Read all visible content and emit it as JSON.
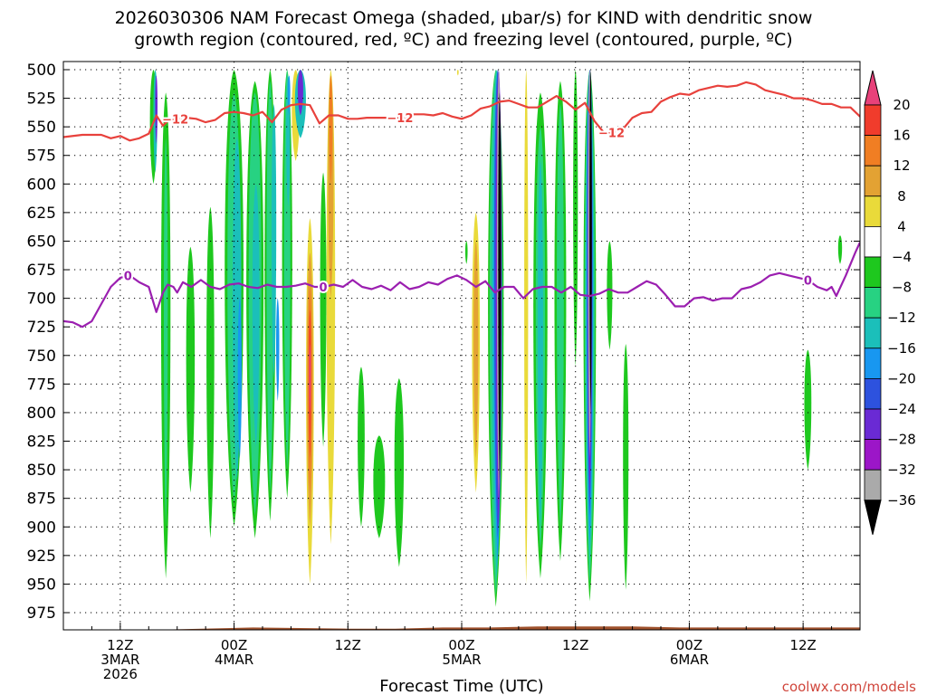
{
  "chart_data": {
    "type": "heatmap",
    "title_lines": [
      "2026030306 NAM Forecast Omega (shaded, μbar/s) for KIND with dendritic snow",
      "growth region (contoured, red, ºC) and freezing level (contoured, purple, ºC)"
    ],
    "xlabel": "Forecast Time (UTC)",
    "ylabel": "",
    "credit": "coolwx.com/models",
    "y_axis": {
      "unit": "hPa",
      "range": [
        500,
        990
      ],
      "ticks": [
        "500",
        "525",
        "550",
        "575",
        "600",
        "625",
        "650",
        "675",
        "700",
        "725",
        "750",
        "775",
        "800",
        "825",
        "850",
        "875",
        "900",
        "925",
        "950",
        "975"
      ]
    },
    "x_axis": {
      "unit": "hours since 2026-03-03 06Z",
      "range": [
        0,
        84
      ],
      "ticks": [
        {
          "hour": 6,
          "label1": "12Z",
          "label2": "3MAR",
          "label3": "2026"
        },
        {
          "hour": 18,
          "label1": "00Z",
          "label2": "4MAR",
          "label3": ""
        },
        {
          "hour": 30,
          "label1": "12Z",
          "label2": "",
          "label3": ""
        },
        {
          "hour": 42,
          "label1": "00Z",
          "label2": "5MAR",
          "label3": ""
        },
        {
          "hour": 54,
          "label1": "12Z",
          "label2": "",
          "label3": ""
        },
        {
          "hour": 66,
          "label1": "00Z",
          "label2": "6MAR",
          "label3": ""
        },
        {
          "hour": 78,
          "label1": "12Z",
          "label2": "",
          "label3": ""
        }
      ]
    },
    "grid": true,
    "colorbar": {
      "levels": [
        "20",
        "16",
        "12",
        "8",
        "4",
        "−4",
        "−8",
        "−12",
        "−16",
        "−20",
        "−24",
        "−28",
        "−32",
        "−36"
      ],
      "colors": [
        "#e8417a",
        "#f03c2c",
        "#f07e23",
        "#e3a233",
        "#e9da3a",
        "#ffffff",
        "#1ec81e",
        "#27d282",
        "#1bbfba",
        "#1897f0",
        "#2d52de",
        "#6a2ad4",
        "#9c16c8",
        "#aaaaaa",
        "#000000"
      ]
    },
    "omega_bands": [
      {
        "x": 9.5,
        "p_top": 500,
        "p_bot": 600,
        "width": 0.9,
        "color": "#1ec81e"
      },
      {
        "x": 9.7,
        "p_top": 500,
        "p_bot": 590,
        "width": 0.5,
        "color": "#1bbfba"
      },
      {
        "x": 9.8,
        "p_top": 505,
        "p_bot": 565,
        "width": 0.3,
        "color": "#6a2ad4"
      },
      {
        "x": 10.8,
        "p_top": 520,
        "p_bot": 945,
        "width": 1.2,
        "color": "#1ec81e"
      },
      {
        "x": 10.8,
        "p_top": 560,
        "p_bot": 900,
        "width": 0.5,
        "color": "#27d282"
      },
      {
        "x": 13.4,
        "p_top": 655,
        "p_bot": 870,
        "width": 1.1,
        "color": "#1ec81e"
      },
      {
        "x": 15.5,
        "p_top": 620,
        "p_bot": 910,
        "width": 1.0,
        "color": "#1ec81e"
      },
      {
        "x": 18.0,
        "p_top": 500,
        "p_bot": 900,
        "width": 2.4,
        "color": "#1ec81e"
      },
      {
        "x": 18.0,
        "p_top": 520,
        "p_bot": 880,
        "width": 1.7,
        "color": "#27d282"
      },
      {
        "x": 18.3,
        "p_top": 560,
        "p_bot": 860,
        "width": 1.1,
        "color": "#1bbfba"
      },
      {
        "x": 18.6,
        "p_top": 700,
        "p_bot": 840,
        "width": 0.5,
        "color": "#1897f0"
      },
      {
        "x": 20.2,
        "p_top": 510,
        "p_bot": 910,
        "width": 2.2,
        "color": "#1ec81e"
      },
      {
        "x": 20.2,
        "p_top": 520,
        "p_bot": 890,
        "width": 1.6,
        "color": "#27d282"
      },
      {
        "x": 20.3,
        "p_top": 600,
        "p_bot": 830,
        "width": 0.9,
        "color": "#1bbfba"
      },
      {
        "x": 21.8,
        "p_top": 500,
        "p_bot": 895,
        "width": 1.4,
        "color": "#1ec81e"
      },
      {
        "x": 21.8,
        "p_top": 510,
        "p_bot": 870,
        "width": 0.9,
        "color": "#27d282"
      },
      {
        "x": 22.2,
        "p_top": 530,
        "p_bot": 770,
        "width": 0.6,
        "color": "#1bbfba"
      },
      {
        "x": 22.6,
        "p_top": 700,
        "p_bot": 790,
        "width": 0.4,
        "color": "#1897f0"
      },
      {
        "x": 23.6,
        "p_top": 500,
        "p_bot": 875,
        "width": 1.3,
        "color": "#1ec81e"
      },
      {
        "x": 23.6,
        "p_top": 500,
        "p_bot": 850,
        "width": 0.8,
        "color": "#27d282"
      },
      {
        "x": 23.7,
        "p_top": 505,
        "p_bot": 620,
        "width": 0.5,
        "color": "#1bbfba"
      },
      {
        "x": 23.8,
        "p_top": 505,
        "p_bot": 540,
        "width": 0.3,
        "color": "#1897f0"
      },
      {
        "x": 24.5,
        "p_top": 500,
        "p_bot": 580,
        "width": 1.0,
        "color": "#e9da3a"
      },
      {
        "x": 25.0,
        "p_top": 500,
        "p_bot": 560,
        "width": 1.4,
        "color": "#1bbfba"
      },
      {
        "x": 25.0,
        "p_top": 500,
        "p_bot": 540,
        "width": 0.7,
        "color": "#6a2ad4"
      },
      {
        "x": 26.0,
        "p_top": 630,
        "p_bot": 950,
        "width": 1.0,
        "color": "#e9da3a"
      },
      {
        "x": 26.0,
        "p_top": 660,
        "p_bot": 900,
        "width": 0.8,
        "color": "#e3a233"
      },
      {
        "x": 26.0,
        "p_top": 690,
        "p_bot": 870,
        "width": 0.5,
        "color": "#f07e23"
      },
      {
        "x": 26.0,
        "p_top": 710,
        "p_bot": 840,
        "width": 0.3,
        "color": "#f03c2c"
      },
      {
        "x": 26.0,
        "p_top": 740,
        "p_bot": 800,
        "width": 0.2,
        "color": "#e8417a"
      },
      {
        "x": 27.4,
        "p_top": 590,
        "p_bot": 830,
        "width": 0.8,
        "color": "#1ec81e"
      },
      {
        "x": 28.2,
        "p_top": 500,
        "p_bot": 915,
        "width": 1.1,
        "color": "#e9da3a"
      },
      {
        "x": 28.2,
        "p_top": 505,
        "p_bot": 700,
        "width": 0.7,
        "color": "#e3a233"
      },
      {
        "x": 28.2,
        "p_top": 505,
        "p_bot": 600,
        "width": 0.4,
        "color": "#f07e23"
      },
      {
        "x": 31.4,
        "p_top": 760,
        "p_bot": 900,
        "width": 0.9,
        "color": "#1ec81e"
      },
      {
        "x": 33.3,
        "p_top": 820,
        "p_bot": 910,
        "width": 1.5,
        "color": "#1ec81e"
      },
      {
        "x": 35.4,
        "p_top": 770,
        "p_bot": 935,
        "width": 1.2,
        "color": "#1ec81e"
      },
      {
        "x": 41.6,
        "p_top": 500,
        "p_bot": 505,
        "width": 0.2,
        "color": "#e9da3a"
      },
      {
        "x": 42.5,
        "p_top": 650,
        "p_bot": 670,
        "width": 0.3,
        "color": "#1ec81e"
      },
      {
        "x": 43.5,
        "p_top": 625,
        "p_bot": 870,
        "width": 1.0,
        "color": "#e9da3a"
      },
      {
        "x": 43.5,
        "p_top": 650,
        "p_bot": 840,
        "width": 0.6,
        "color": "#e3a233"
      },
      {
        "x": 45.6,
        "p_top": 500,
        "p_bot": 970,
        "width": 2.0,
        "color": "#1ec81e"
      },
      {
        "x": 45.6,
        "p_top": 500,
        "p_bot": 960,
        "width": 1.6,
        "color": "#27d282"
      },
      {
        "x": 45.7,
        "p_top": 500,
        "p_bot": 945,
        "width": 1.3,
        "color": "#1bbfba"
      },
      {
        "x": 45.8,
        "p_top": 500,
        "p_bot": 930,
        "width": 1.1,
        "color": "#1897f0"
      },
      {
        "x": 45.8,
        "p_top": 500,
        "p_bot": 910,
        "width": 0.9,
        "color": "#2d52de"
      },
      {
        "x": 45.9,
        "p_top": 500,
        "p_bot": 900,
        "width": 0.75,
        "color": "#6a2ad4"
      },
      {
        "x": 45.9,
        "p_top": 500,
        "p_bot": 880,
        "width": 0.6,
        "color": "#9c16c8"
      },
      {
        "x": 45.9,
        "p_top": 500,
        "p_bot": 875,
        "width": 0.45,
        "color": "#aaaaaa"
      },
      {
        "x": 46.0,
        "p_top": 520,
        "p_bot": 860,
        "width": 0.35,
        "color": "#000000"
      },
      {
        "x": 48.8,
        "p_top": 500,
        "p_bot": 950,
        "width": 0.5,
        "color": "#e9da3a"
      },
      {
        "x": 50.3,
        "p_top": 520,
        "p_bot": 945,
        "width": 1.8,
        "color": "#1ec81e"
      },
      {
        "x": 50.3,
        "p_top": 550,
        "p_bot": 920,
        "width": 1.2,
        "color": "#27d282"
      },
      {
        "x": 50.3,
        "p_top": 580,
        "p_bot": 900,
        "width": 0.7,
        "color": "#1bbfba"
      },
      {
        "x": 52.4,
        "p_top": 510,
        "p_bot": 930,
        "width": 1.5,
        "color": "#1ec81e"
      },
      {
        "x": 52.4,
        "p_top": 530,
        "p_bot": 900,
        "width": 0.9,
        "color": "#27d282"
      },
      {
        "x": 54.0,
        "p_top": 500,
        "p_bot": 760,
        "width": 0.6,
        "color": "#1ec81e"
      },
      {
        "x": 55.5,
        "p_top": 500,
        "p_bot": 965,
        "width": 1.6,
        "color": "#1ec81e"
      },
      {
        "x": 55.5,
        "p_top": 500,
        "p_bot": 950,
        "width": 1.3,
        "color": "#27d282"
      },
      {
        "x": 55.5,
        "p_top": 500,
        "p_bot": 930,
        "width": 1.05,
        "color": "#1bbfba"
      },
      {
        "x": 55.5,
        "p_top": 500,
        "p_bot": 915,
        "width": 0.85,
        "color": "#1897f0"
      },
      {
        "x": 55.5,
        "p_top": 500,
        "p_bot": 890,
        "width": 0.7,
        "color": "#2d52de"
      },
      {
        "x": 55.5,
        "p_top": 500,
        "p_bot": 870,
        "width": 0.55,
        "color": "#6a2ad4"
      },
      {
        "x": 55.5,
        "p_top": 500,
        "p_bot": 840,
        "width": 0.4,
        "color": "#aaaaaa"
      },
      {
        "x": 55.6,
        "p_top": 500,
        "p_bot": 800,
        "width": 0.3,
        "color": "#000000"
      },
      {
        "x": 57.6,
        "p_top": 650,
        "p_bot": 745,
        "width": 0.7,
        "color": "#1ec81e"
      },
      {
        "x": 59.3,
        "p_top": 740,
        "p_bot": 955,
        "width": 0.7,
        "color": "#1ec81e"
      },
      {
        "x": 78.5,
        "p_top": 745,
        "p_bot": 850,
        "width": 0.9,
        "color": "#1ec81e"
      },
      {
        "x": 81.9,
        "p_top": 645,
        "p_bot": 670,
        "width": 0.5,
        "color": "#1ec81e"
      }
    ],
    "contour_minus12": {
      "label": "−12",
      "color": "#e8413c",
      "x": [
        0,
        2,
        4,
        5,
        6,
        7,
        8,
        9,
        9.8,
        10.5,
        11,
        12,
        13,
        14,
        15,
        16,
        17,
        18,
        19,
        20,
        21,
        22,
        23,
        24,
        25,
        26,
        27,
        28,
        29,
        30,
        31,
        32,
        33,
        34,
        35,
        36,
        37,
        38,
        39,
        40,
        41,
        42,
        43,
        44,
        45,
        46,
        47,
        48,
        49,
        50,
        51,
        52,
        53,
        54,
        55,
        56,
        57,
        58,
        59,
        60,
        61,
        62,
        63,
        64,
        65,
        66,
        67,
        68,
        69,
        70,
        71,
        72,
        73,
        74,
        75,
        76,
        77,
        78,
        79,
        80,
        81,
        82,
        83,
        84
      ],
      "p": [
        559,
        557,
        557,
        560,
        558,
        562,
        560,
        556,
        540,
        549,
        545,
        543,
        542,
        543,
        546,
        544,
        538,
        537,
        538,
        540,
        537,
        546,
        535,
        531,
        530,
        531,
        547,
        540,
        540,
        543,
        543,
        542,
        542,
        542,
        542,
        542,
        539,
        539,
        540,
        538,
        541,
        543,
        540,
        534,
        532,
        528,
        527,
        530,
        533,
        533,
        528,
        523,
        528,
        535,
        529,
        545,
        555,
        555,
        552,
        542,
        538,
        537,
        528,
        524,
        521,
        522,
        518,
        516,
        514,
        515,
        514,
        511,
        513,
        518,
        520,
        522,
        525,
        525,
        527,
        530,
        530,
        533,
        533,
        541
      ]
    },
    "contour_zero": {
      "label": "0",
      "color": "#9b1fb0",
      "x": [
        0,
        1,
        2,
        3,
        4,
        5,
        6,
        7,
        8,
        9,
        9.8,
        10.5,
        11,
        11.6,
        12,
        12.6,
        13.5,
        14.5,
        15.5,
        16.5,
        17.5,
        18.5,
        19.5,
        20.5,
        21.5,
        22.5,
        23.5,
        24.5,
        25.5,
        26.5,
        27.5,
        28.5,
        29.5,
        30.5,
        31.5,
        32.5,
        33.5,
        34.5,
        35.5,
        36.5,
        37.5,
        38.5,
        39.5,
        40.5,
        41.5,
        42.5,
        43.5,
        44.5,
        45.5,
        46.5,
        47.5,
        48.5,
        49.5,
        50.5,
        51.5,
        52.5,
        53.5,
        54.5,
        55.5,
        56.5,
        57.5,
        58.5,
        59.5,
        60.5,
        61.5,
        62.5,
        63.5,
        64.5,
        65.5,
        66.5,
        67.5,
        68.5,
        69.5,
        70.5,
        71.5,
        72.5,
        73.5,
        74.5,
        75.5,
        76.5,
        77.5,
        78.5,
        79.5,
        80.5,
        81,
        81.5,
        82.5,
        83.5,
        84
      ],
      "p": [
        720,
        721,
        725,
        720,
        705,
        690,
        682,
        680,
        686,
        690,
        712,
        695,
        688,
        690,
        695,
        686,
        690,
        684,
        690,
        692,
        688,
        687,
        690,
        691,
        688,
        690,
        690,
        689,
        687,
        690,
        690,
        688,
        690,
        684,
        690,
        692,
        689,
        693,
        686,
        692,
        690,
        686,
        688,
        683,
        680,
        684,
        690,
        685,
        695,
        690,
        690,
        700,
        692,
        690,
        690,
        695,
        690,
        697,
        698,
        696,
        692,
        695,
        695,
        690,
        685,
        688,
        697,
        707,
        707,
        700,
        699,
        702,
        700,
        700,
        692,
        690,
        686,
        680,
        678,
        680,
        682,
        684,
        690,
        693,
        690,
        698,
        680,
        660,
        651,
        649
      ]
    },
    "terrain_color": "#a0522d"
  }
}
